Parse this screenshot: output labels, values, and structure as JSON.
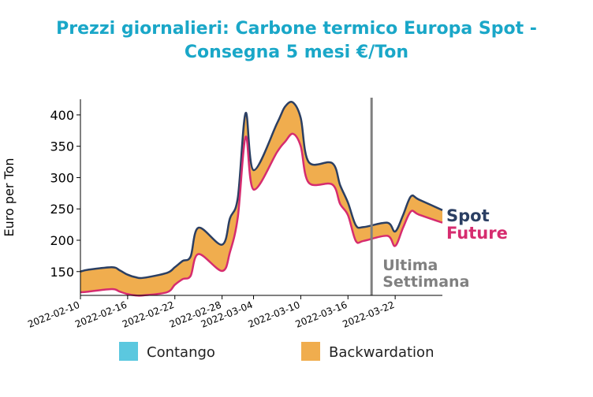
{
  "chart_data": {
    "type": "area",
    "title_lines": [
      "Prezzi giornalieri: Carbone termico Europa Spot -",
      "Consegna 5 mesi €/Ton"
    ],
    "ylabel": "Euro per Ton",
    "xlabel": "",
    "ylim": [
      112,
      425
    ],
    "y_ticks": [
      150,
      200,
      250,
      300,
      350,
      400
    ],
    "x_ticks": [
      "2022-02-10",
      "2022-02-16",
      "2022-02-22",
      "2022-02-28",
      "2022-03-04",
      "2022-03-10",
      "2022-03-16",
      "2022-03-22"
    ],
    "x_range": [
      "2022-02-10",
      "2022-03-28"
    ],
    "grid": false,
    "series": [
      {
        "name": "Spot",
        "color": "#2b3f63",
        "x": [
          "2022-02-10",
          "2022-02-11",
          "2022-02-14",
          "2022-02-15",
          "2022-02-16",
          "2022-02-17",
          "2022-02-18",
          "2022-02-21",
          "2022-02-22",
          "2022-02-23",
          "2022-02-24",
          "2022-02-25",
          "2022-02-28",
          "2022-03-01",
          "2022-03-02",
          "2022-03-03",
          "2022-03-04",
          "2022-03-07",
          "2022-03-08",
          "2022-03-09",
          "2022-03-10",
          "2022-03-11",
          "2022-03-14",
          "2022-03-15",
          "2022-03-16",
          "2022-03-17",
          "2022-03-18",
          "2022-03-21",
          "2022-03-22",
          "2022-03-23",
          "2022-03-24",
          "2022-03-25",
          "2022-03-28"
        ],
        "values": [
          150,
          153,
          157,
          152,
          145,
          141,
          140,
          148,
          157,
          167,
          174,
          220,
          193,
          235,
          268,
          403,
          312,
          387,
          413,
          420,
          395,
          325,
          323,
          288,
          260,
          224,
          221,
          228,
          214,
          240,
          270,
          265,
          248
        ]
      },
      {
        "name": "Future",
        "color": "#d62c6f",
        "x": [
          "2022-02-10",
          "2022-02-11",
          "2022-02-14",
          "2022-02-15",
          "2022-02-16",
          "2022-02-17",
          "2022-02-18",
          "2022-02-21",
          "2022-02-22",
          "2022-02-23",
          "2022-02-24",
          "2022-02-25",
          "2022-02-28",
          "2022-03-01",
          "2022-03-02",
          "2022-03-03",
          "2022-03-04",
          "2022-03-07",
          "2022-03-08",
          "2022-03-09",
          "2022-03-10",
          "2022-03-11",
          "2022-03-14",
          "2022-03-15",
          "2022-03-16",
          "2022-03-17",
          "2022-03-18",
          "2022-03-21",
          "2022-03-22",
          "2022-03-23",
          "2022-03-24",
          "2022-03-25",
          "2022-03-28"
        ],
        "values": [
          117,
          118,
          122,
          118,
          114,
          112,
          112,
          117,
          129,
          138,
          143,
          178,
          151,
          181,
          237,
          365,
          281,
          341,
          357,
          370,
          350,
          292,
          289,
          258,
          240,
          199,
          199,
          207,
          191,
          220,
          246,
          241,
          228
        ]
      }
    ],
    "fill_colors": {
      "contango": "#5bc8df",
      "backwardation": "#f0ad4e"
    },
    "marker": {
      "date": "2022-03-19",
      "label_lines": [
        "Ultima",
        "Settimana"
      ],
      "color": "#808080"
    },
    "legend": {
      "position": "bottom",
      "items": [
        {
          "label": "Contango",
          "color": "#5bc8df"
        },
        {
          "label": "Backwardation",
          "color": "#f0ad4e"
        }
      ]
    }
  }
}
